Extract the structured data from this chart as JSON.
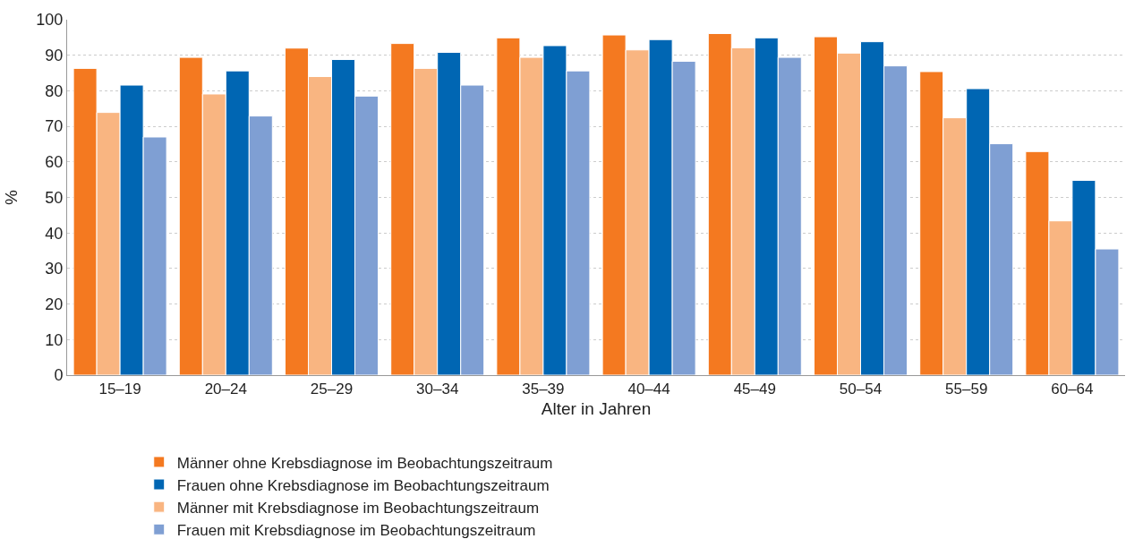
{
  "chart_data": {
    "type": "bar",
    "xlabel": "Alter in Jahren",
    "ylabel": "%",
    "categories": [
      "15–19",
      "20–24",
      "25–29",
      "30–34",
      "35–39",
      "40–44",
      "45–49",
      "50–54",
      "55–59",
      "60–64"
    ],
    "series": [
      {
        "name": "Männer ohne Krebsdiagnose im Beobachtungszeitraum",
        "color": "#f47920",
        "values": [
          86.3,
          89.4,
          92.0,
          93.3,
          94.9,
          95.7,
          96.1,
          95.2,
          85.4,
          62.9
        ]
      },
      {
        "name": "Männer mit Krebsdiagnose im Beobachtungszeitraum",
        "color": "#f9b581",
        "values": [
          73.9,
          79.1,
          84.0,
          86.3,
          89.4,
          91.5,
          92.1,
          90.6,
          72.4,
          43.4
        ]
      },
      {
        "name": "Frauen ohne Krebsdiagnose im Beobachtungszeitraum",
        "color": "#0066b3",
        "values": [
          81.6,
          85.6,
          88.8,
          90.8,
          92.7,
          94.4,
          94.9,
          93.8,
          80.6,
          54.8
        ]
      },
      {
        "name": "Frauen mit Krebsdiagnose im Beobachtungszeitraum",
        "color": "#7f9fd3",
        "values": [
          67.0,
          72.9,
          78.5,
          81.6,
          85.6,
          88.3,
          89.4,
          87.0,
          65.1,
          35.5
        ]
      }
    ],
    "ylim": [
      0,
      100
    ],
    "yticks": [
      0,
      10,
      20,
      30,
      40,
      50,
      60,
      70,
      80,
      90,
      100
    ],
    "grid": "y",
    "legend": "bottom"
  }
}
